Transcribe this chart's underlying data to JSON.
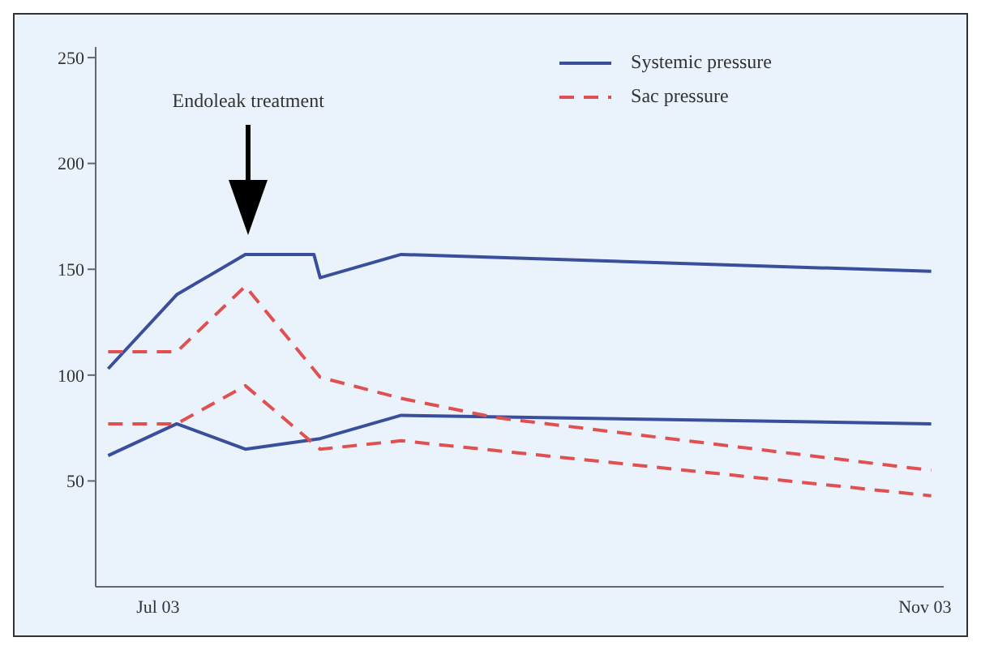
{
  "chart_data": {
    "type": "line",
    "annotations": [
      "Endoleak treatment"
    ],
    "xlim": [
      "2003-06-21",
      "2003-11-04"
    ],
    "xticks": [
      {
        "value": "2003-07-01",
        "label": "Jul 03"
      },
      {
        "value": "2003-11-01",
        "label": "Nov 03"
      }
    ],
    "ylim": [
      0,
      255
    ],
    "yticks": [
      50,
      100,
      150,
      200,
      250
    ],
    "legend": "top right",
    "marker": "none",
    "series": [
      {
        "name": "Systemic pressure",
        "color": "#3a4f9c",
        "line_style": "solid",
        "x": [
          "2003-06-23",
          "2003-07-04",
          "2003-07-15",
          "2003-07-26",
          "2003-07-27",
          "2003-08-09",
          "2003-11-02"
        ],
        "values": [
          103,
          138,
          157,
          157,
          146,
          157,
          149
        ]
      },
      {
        "color": "#3a4f9c",
        "line_style": "solid",
        "x": [
          "2003-06-23",
          "2003-07-04",
          "2003-07-15",
          "2003-07-27",
          "2003-08-09",
          "2003-11-02"
        ],
        "values": [
          62,
          77,
          65,
          70,
          81,
          77
        ]
      },
      {
        "name": "Sac pressure",
        "color": "#e05050",
        "line_style": "dashed",
        "x": [
          "2003-06-23",
          "2003-07-04",
          "2003-07-15",
          "2003-07-27",
          "2003-08-09",
          "2003-08-24",
          "2003-11-02"
        ],
        "values": [
          111,
          111,
          142,
          99,
          89,
          80,
          55
        ]
      },
      {
        "color": "#e05050",
        "line_style": "dashed",
        "x": [
          "2003-06-23",
          "2003-07-04",
          "2003-07-15",
          "2003-07-27",
          "2003-08-09",
          "2003-11-02"
        ],
        "values": [
          77,
          77,
          95,
          65,
          69,
          43
        ]
      }
    ]
  }
}
